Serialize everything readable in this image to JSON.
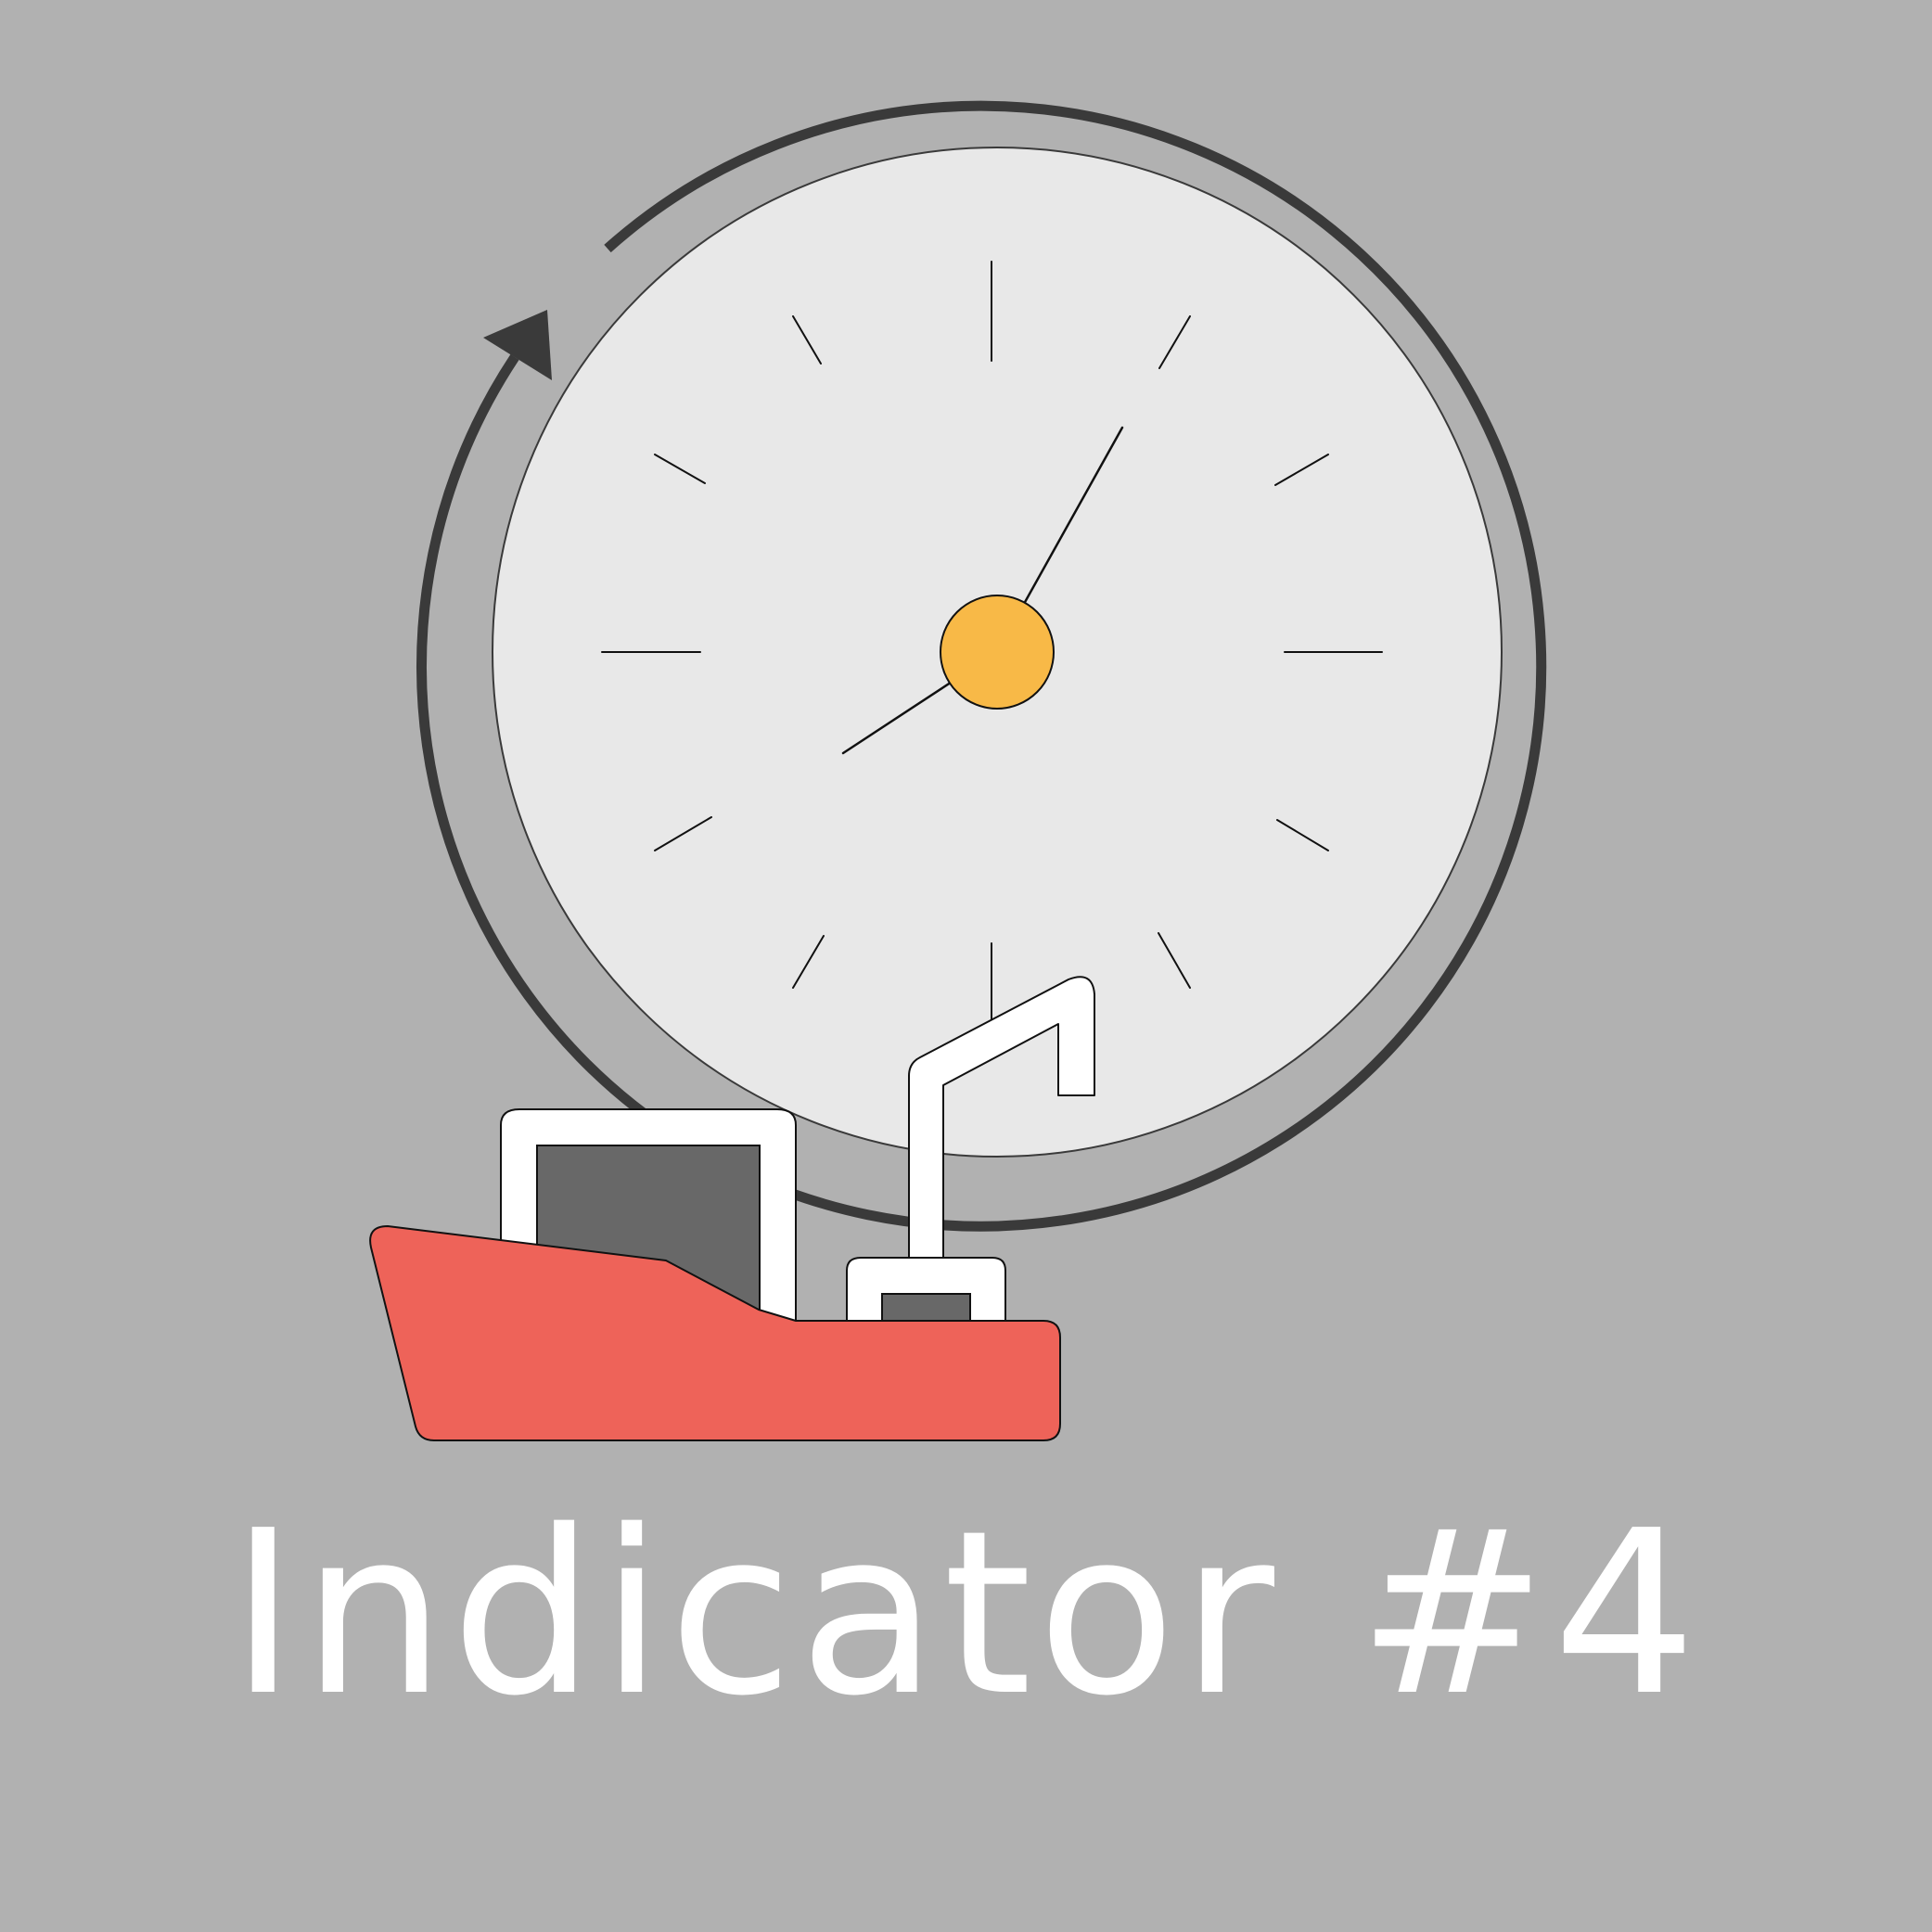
{
  "title": "Indicator #4",
  "icons": {
    "refresh_arrow": "circular-arrow-icon",
    "clock": "clock-icon",
    "ship": "cargo-ship-icon"
  },
  "colors": {
    "background": "#b1b1b1",
    "clock_face": "#e8e8e8",
    "arrow": "#3a3a3a",
    "clock_center": "#f8b947",
    "ship_hull": "#ee6359",
    "ship_cabin": "#ffffff",
    "ship_window": "#686868",
    "title_text": "#ffffff"
  }
}
